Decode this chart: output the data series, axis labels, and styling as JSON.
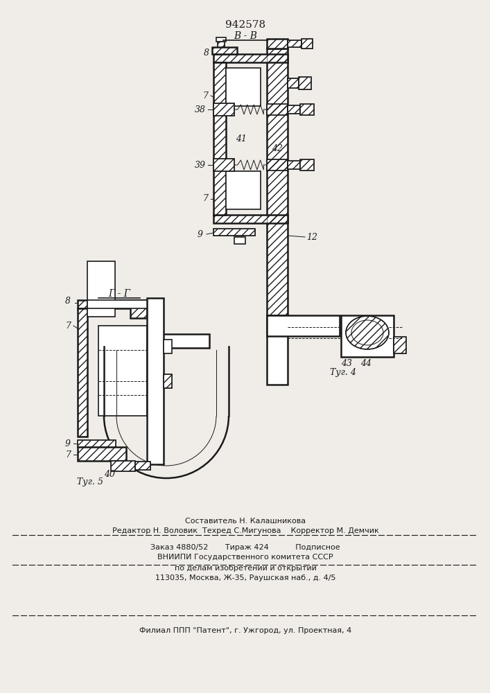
{
  "patent_number": "942578",
  "bg_color": "#f0ede8",
  "line_color": "#1a1a1a",
  "footer_line1": "Составитель Н. Калашникова",
  "footer_line2": "Редактор Н. Воловик  Техред С.Мигунова    Корректор М. Демчик",
  "footer_line3": "Заказ 4880/52       Тираж 424           Подписное",
  "footer_line4": "ВНИИПИ Государственного комитета СССР",
  "footer_line5": "по делам изобретений и открытий",
  "footer_line6": "113035, Москва, Ж-35, Раушская наб., д. 4/5",
  "footer_line7": "Филиал ППП \"Патент\", г. Ужгород, ул. Проектная, 4"
}
